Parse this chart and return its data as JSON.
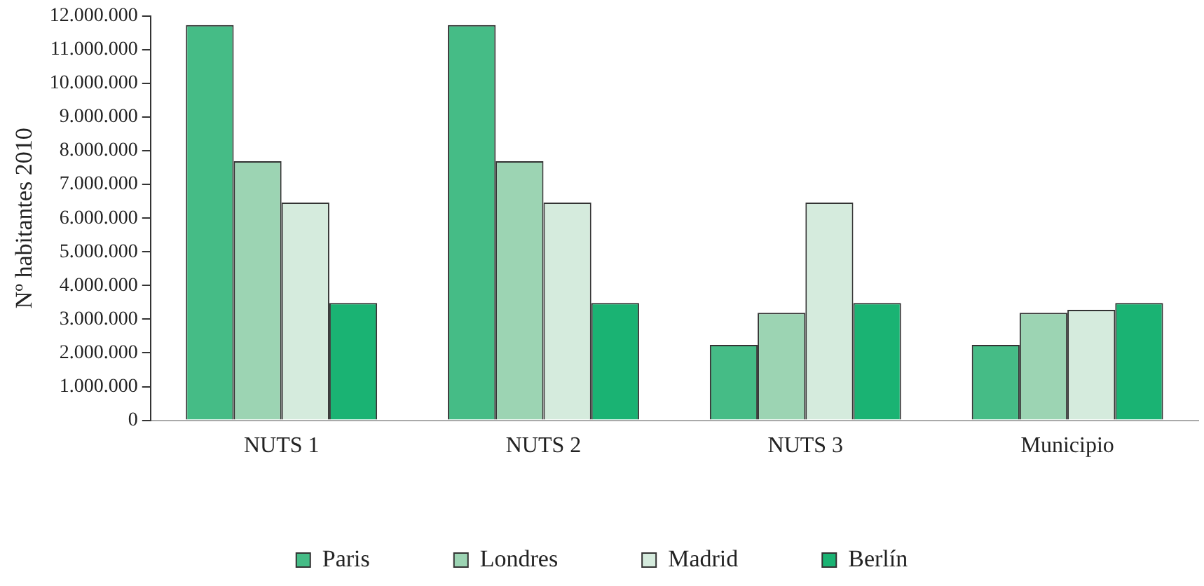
{
  "chart_data": {
    "type": "bar",
    "ylabel": "Nº habitantes 2010",
    "categories": [
      "NUTS 1",
      "NUTS 2",
      "NUTS 3",
      "Municipio"
    ],
    "series": [
      {
        "name": "Paris",
        "color": "#45bc86",
        "values": [
          11730000,
          11730000,
          2240000,
          2240000
        ]
      },
      {
        "name": "Londres",
        "color": "#9cd4b3",
        "values": [
          7690000,
          7690000,
          3190000,
          3190000
        ]
      },
      {
        "name": "Madrid",
        "color": "#d5ebdd",
        "values": [
          6460000,
          6460000,
          6460000,
          3280000
        ]
      },
      {
        "name": "Berlín",
        "color": "#1ab373",
        "values": [
          3480000,
          3480000,
          3480000,
          3480000
        ]
      }
    ],
    "ylim": [
      0,
      12000000
    ],
    "yticks": [
      {
        "value": 0,
        "label": "0"
      },
      {
        "value": 1000000,
        "label": "1.000.000"
      },
      {
        "value": 2000000,
        "label": "2.000.000"
      },
      {
        "value": 3000000,
        "label": "3.000.000"
      },
      {
        "value": 4000000,
        "label": "4.000.000"
      },
      {
        "value": 5000000,
        "label": "5.000.000"
      },
      {
        "value": 6000000,
        "label": "6.000.000"
      },
      {
        "value": 7000000,
        "label": "7.000.000"
      },
      {
        "value": 8000000,
        "label": "8.000.000"
      },
      {
        "value": 9000000,
        "label": "9.000.000"
      },
      {
        "value": 10000000,
        "label": "10.000.000"
      },
      {
        "value": 11000000,
        "label": "11.000.000"
      },
      {
        "value": 12000000,
        "label": "12.000.000"
      }
    ],
    "grid": false,
    "legend": "bottom"
  }
}
